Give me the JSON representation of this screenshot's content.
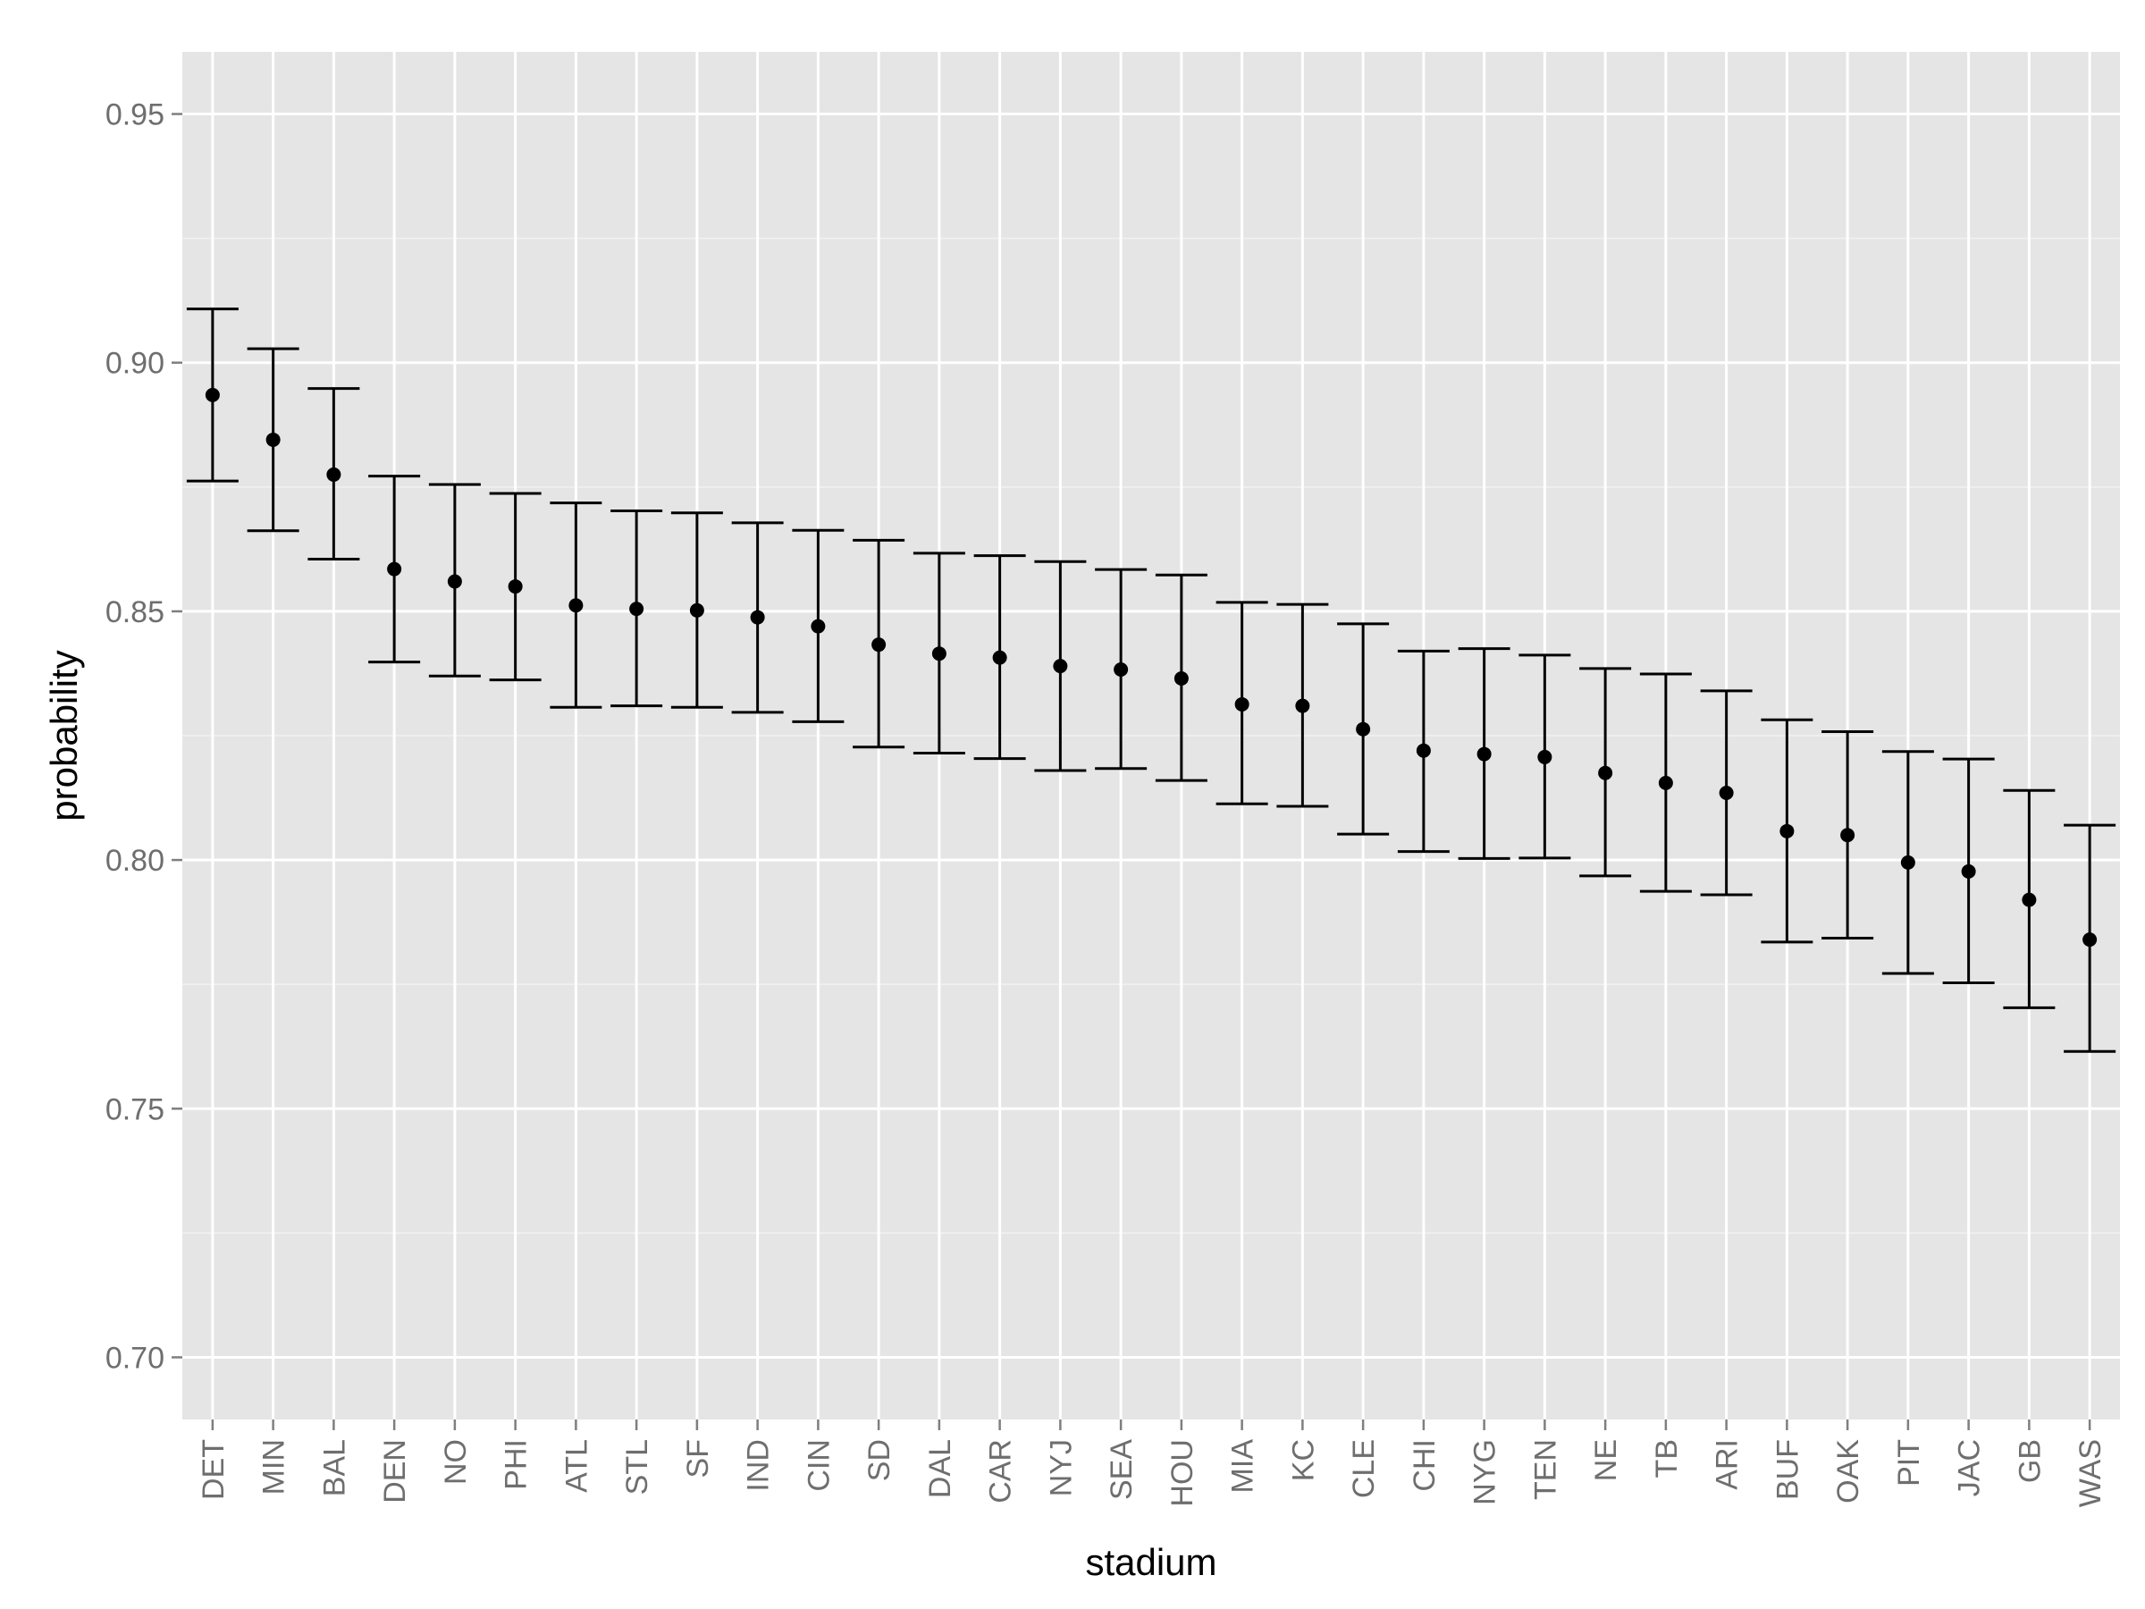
{
  "chart_data": {
    "type": "scatter",
    "title": "",
    "xlabel": "stadium",
    "ylabel": "probability",
    "ylim": [
      0.6875,
      0.9625
    ],
    "yticks": [
      0.7,
      0.75,
      0.8,
      0.85,
      0.9,
      0.95
    ],
    "ytick_labels": [
      "0.70",
      "0.75",
      "0.80",
      "0.85",
      "0.90",
      "0.95"
    ],
    "grid": true,
    "legend": "none",
    "categories": [
      "DET",
      "MIN",
      "BAL",
      "DEN",
      "NO",
      "PHI",
      "ATL",
      "STL",
      "SF",
      "IND",
      "CIN",
      "SD",
      "DAL",
      "CAR",
      "NYJ",
      "SEA",
      "HOU",
      "MIA",
      "KC",
      "CLE",
      "CHI",
      "NYG",
      "TEN",
      "NE",
      "TB",
      "ARI",
      "BUF",
      "OAK",
      "PIT",
      "JAC",
      "GB",
      "WAS"
    ],
    "series": [
      {
        "values": [
          0.8935,
          0.8845,
          0.8775,
          0.8585,
          0.856,
          0.855,
          0.8512,
          0.8505,
          0.8502,
          0.8488,
          0.847,
          0.8433,
          0.8415,
          0.8407,
          0.839,
          0.8383,
          0.8365,
          0.8313,
          0.831,
          0.8263,
          0.822,
          0.8213,
          0.8207,
          0.8175,
          0.8155,
          0.8135,
          0.8058,
          0.805,
          0.7995,
          0.7977,
          0.792,
          0.784
        ],
        "lower": [
          0.8762,
          0.8662,
          0.8605,
          0.8398,
          0.837,
          0.8362,
          0.8307,
          0.831,
          0.8307,
          0.8297,
          0.8278,
          0.8227,
          0.8215,
          0.8204,
          0.818,
          0.8184,
          0.816,
          0.8113,
          0.8108,
          0.8052,
          0.8017,
          0.8003,
          0.8004,
          0.7968,
          0.7937,
          0.793,
          0.7835,
          0.7843,
          0.7772,
          0.7753,
          0.7703,
          0.7615
        ],
        "upper": [
          0.9108,
          0.9028,
          0.8948,
          0.8772,
          0.8755,
          0.8737,
          0.8718,
          0.8702,
          0.8698,
          0.8678,
          0.8663,
          0.8643,
          0.8617,
          0.8612,
          0.86,
          0.8584,
          0.8573,
          0.8518,
          0.8514,
          0.8475,
          0.842,
          0.8425,
          0.8412,
          0.8385,
          0.8374,
          0.834,
          0.8282,
          0.8258,
          0.8218,
          0.8203,
          0.814,
          0.807
        ]
      }
    ]
  },
  "colors": {
    "panel_bg": "#e5e5e5",
    "grid_major": "#ffffff",
    "grid_minor": "#f2f2f2",
    "tick_text": "#6e6e6e",
    "mark": "#000000"
  }
}
